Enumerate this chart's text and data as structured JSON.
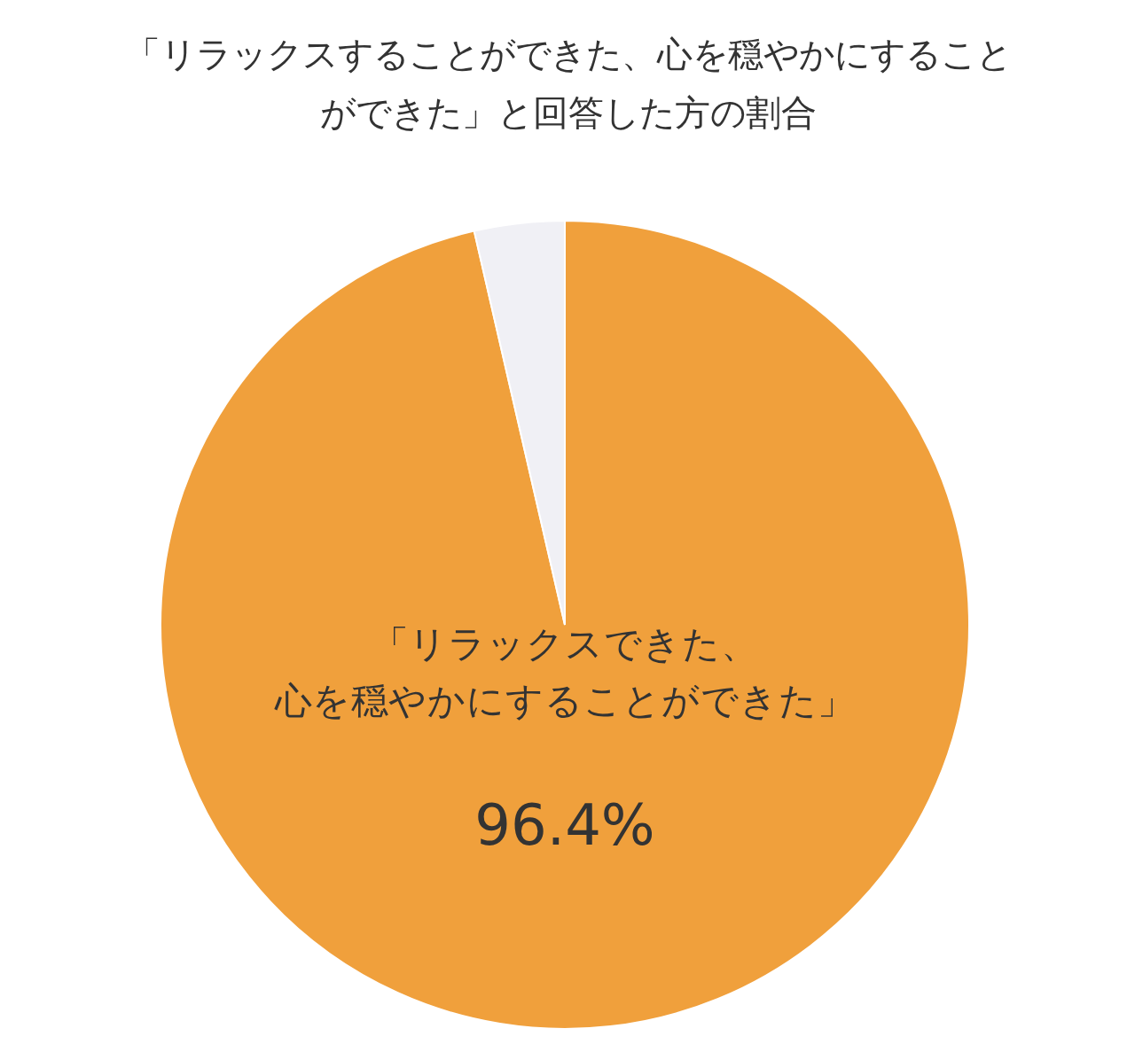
{
  "chart_data": {
    "type": "pie",
    "title": "「リラックスすることができた、心を穏やかにすることができた」と回答した方の割合",
    "categories": [
      "「リラックスできた、心を穏やかにすることができた」",
      null
    ],
    "values": [
      96.4,
      3.6
    ],
    "colors": [
      "#f0a03c",
      "#f0f0f5"
    ],
    "value_labels": [
      "96.4%",
      null
    ]
  }
}
